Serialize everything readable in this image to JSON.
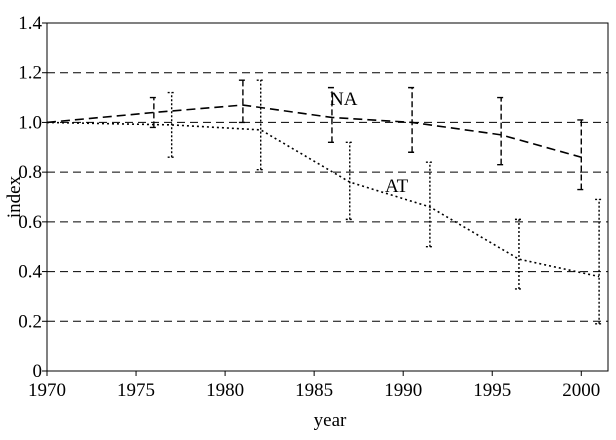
{
  "chart_data": {
    "type": "line",
    "xlabel": "year",
    "ylabel": "index",
    "xlim": [
      1970,
      2001.5
    ],
    "xticks": [
      1970,
      1975,
      1980,
      1985,
      1990,
      1995,
      2000
    ],
    "ylim": [
      0,
      1.4
    ],
    "yticks": [
      0,
      0.2,
      0.4,
      0.6,
      {
        "value": 0.8,
        "label": "0.8"
      },
      {
        "value": 1,
        "label": "1.0"
      },
      1.2,
      1.4
    ],
    "grid": true,
    "annotations": [
      "NA",
      "AT"
    ],
    "series": [
      {
        "name": "NA",
        "color": "#000000",
        "dash": "dashed",
        "x": [
          1970,
          1976,
          1981,
          1986,
          1990.5,
          1995.5,
          2000
        ],
        "values": [
          1.0,
          1.04,
          1.07,
          1.02,
          1.0,
          0.95,
          0.86
        ],
        "lower": [
          null,
          0.98,
          1.0,
          0.92,
          0.88,
          0.83,
          0.73
        ],
        "upper": [
          null,
          1.1,
          1.17,
          1.14,
          1.14,
          1.1,
          1.01
        ]
      },
      {
        "name": "AT",
        "color": "#000000",
        "dash": "dotted",
        "x": [
          1970,
          1977,
          1982,
          1987,
          1991.5,
          1996.5,
          2001
        ],
        "values": [
          1.0,
          0.99,
          0.97,
          0.76,
          0.66,
          0.45,
          0.38
        ],
        "lower": [
          null,
          0.86,
          0.81,
          0.61,
          0.5,
          0.33,
          0.19
        ],
        "upper": [
          null,
          1.12,
          1.17,
          0.92,
          0.84,
          0.61,
          0.69
        ]
      }
    ]
  }
}
